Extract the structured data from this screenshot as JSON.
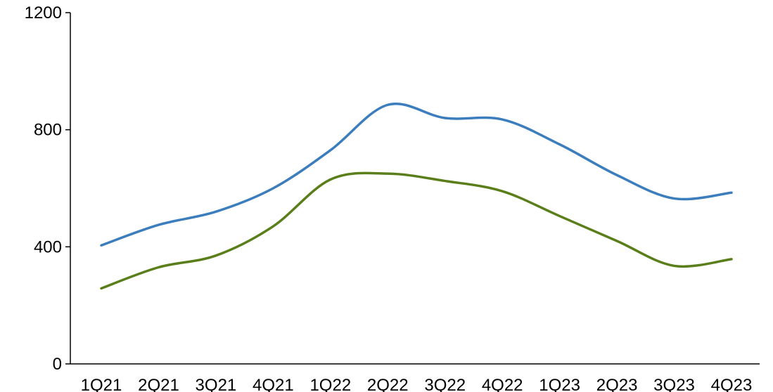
{
  "chart_data": {
    "type": "line",
    "title": "",
    "xlabel": "",
    "ylabel": "",
    "categories": [
      "1Q21",
      "2Q21",
      "3Q21",
      "4Q21",
      "1Q22",
      "2Q22",
      "3Q22",
      "4Q22",
      "1Q23",
      "2Q23",
      "3Q23",
      "4Q23"
    ],
    "ylim": [
      0,
      1200
    ],
    "yticks": [
      0,
      400,
      800,
      1200
    ],
    "grid": false,
    "smooth": true,
    "series": [
      {
        "color": "#3b7dbd",
        "values": [
          405,
          475,
          520,
          600,
          730,
          885,
          840,
          835,
          750,
          645,
          565,
          585
        ]
      },
      {
        "color": "#5a7f1a",
        "values": [
          258,
          330,
          370,
          470,
          630,
          650,
          625,
          590,
          505,
          420,
          335,
          358
        ]
      }
    ]
  }
}
